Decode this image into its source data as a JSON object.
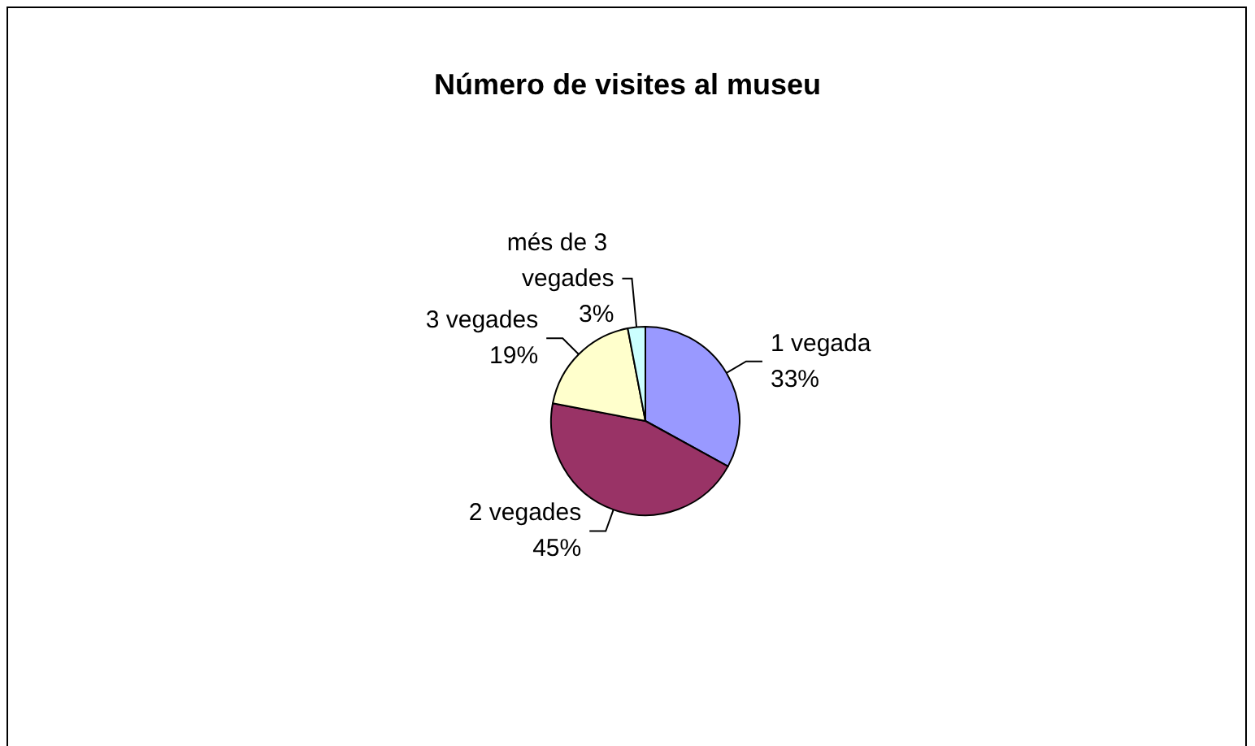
{
  "chart_data": {
    "type": "pie",
    "title": "Número de visites al museu",
    "categories": [
      "1 vegada",
      "2 vegades",
      "3 vegades",
      "més de 3 vegades"
    ],
    "values": [
      33,
      45,
      19,
      3
    ],
    "value_labels": [
      "33%",
      "45%",
      "19%",
      "3%"
    ],
    "colors": [
      "#9999ff",
      "#993366",
      "#ffffcc",
      "#ccffff"
    ],
    "legend": false
  }
}
